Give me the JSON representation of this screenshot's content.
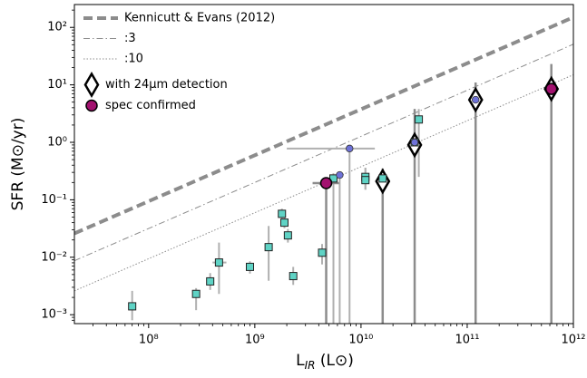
{
  "chart_data": {
    "type": "scatter",
    "xlabel": [
      "L",
      "IR",
      " (L⊙)"
    ],
    "ylabel": "SFR (M⊙/yr)",
    "log_x": true,
    "log_y": true,
    "xlim": [
      20000000,
      1000000000000
    ],
    "ylim": [
      0.0007,
      250
    ],
    "xticks": [
      {
        "value": 100000000,
        "label": "10⁸"
      },
      {
        "value": 1000000000,
        "label": "10⁹"
      },
      {
        "value": 10000000000,
        "label": "10¹⁰"
      },
      {
        "value": 100000000000,
        "label": "10¹¹"
      },
      {
        "value": 1000000000000,
        "label": "10¹²"
      }
    ],
    "yticks": [
      {
        "value": 0.001,
        "label": "10⁻³"
      },
      {
        "value": 0.01,
        "label": "10⁻²"
      },
      {
        "value": 0.1,
        "label": "10⁻¹"
      },
      {
        "value": 1,
        "label": "10⁰"
      },
      {
        "value": 10,
        "label": "10¹"
      },
      {
        "value": 100,
        "label": "10²"
      }
    ],
    "legend": "upper left",
    "series": [
      {
        "name": "Kennicutt & Evans (2012)",
        "kind": "line",
        "dash": "dashed",
        "color": "#8c8c8c",
        "x": [
          20000000,
          1000000000000
        ],
        "values": [
          0.026,
          150
        ]
      },
      {
        "name": ":3",
        "kind": "line",
        "dash": "dashdot",
        "color": "#8c8c8c",
        "x": [
          20000000,
          1000000000000
        ],
        "values": [
          0.0087,
          51
        ]
      },
      {
        "name": ":10",
        "kind": "line",
        "dash": "dotted",
        "color": "#8c8c8c",
        "x": [
          20000000,
          1000000000000
        ],
        "values": [
          0.0026,
          15
        ]
      },
      {
        "kind": "points",
        "marker": "square",
        "color": "#5fd3c5",
        "err_color": "#b0b0b0",
        "x": [
          70000000,
          280000000,
          380000000,
          460000000,
          900000000,
          1350000000,
          1800000000,
          1900000000,
          2050000000,
          2300000000,
          4300000000,
          5500000000,
          11000000000,
          11000000000,
          16000000000,
          32000000000,
          35000000000
        ],
        "values": [
          0.0014,
          0.0023,
          0.0038,
          0.0081,
          0.0068,
          0.015,
          0.057,
          0.04,
          0.024,
          0.0047,
          0.012,
          0.235,
          0.25,
          0.22,
          0.235,
          1.0,
          2.5
        ],
        "err_low": [
          0.0008,
          0.0012,
          0.0027,
          0.0023,
          0.0052,
          0.0039,
          0.046,
          0.032,
          0.018,
          0.0033,
          0.0075,
          0.0007,
          0.15,
          0.15,
          0.0007,
          0.0007,
          0.25
        ],
        "err_high": [
          0.0026,
          0.0029,
          0.0053,
          0.018,
          0.0085,
          0.035,
          0.07,
          0.05,
          0.031,
          0.0068,
          0.017,
          0.29,
          0.36,
          0.36,
          0.35,
          3.8,
          3.8
        ],
        "xerr_low": [
          null,
          null,
          null,
          400000000,
          null,
          null,
          null,
          null,
          null,
          null,
          null,
          null,
          null,
          null,
          null,
          null,
          null
        ],
        "xerr_high": [
          null,
          null,
          null,
          540000000,
          null,
          null,
          null,
          null,
          null,
          null,
          null,
          null,
          null,
          null,
          null,
          null,
          null
        ]
      },
      {
        "kind": "points",
        "marker": "circle",
        "color": "#6e72d8",
        "err_color": "#b0b0b0",
        "x": [
          7800000000,
          6300000000,
          32000000000,
          120000000000
        ],
        "values": [
          0.78,
          0.27,
          1.0,
          5.5
        ],
        "err_low": [
          0.0007,
          0.0007,
          null,
          null
        ],
        "err_high": [
          0.78,
          0.27,
          null,
          null
        ],
        "xerr_low": [
          2000000000,
          null,
          null,
          null
        ],
        "xerr_high": [
          13500000000,
          null,
          null,
          null
        ]
      },
      {
        "name": "with 24μm detection",
        "kind": "points",
        "marker": "diamond",
        "color": "#ffffff",
        "edge": "#000000",
        "err_color": "#8c8c8c",
        "x": [
          16000000000,
          32000000000,
          120000000000,
          620000000000
        ],
        "values": [
          0.21,
          0.9,
          5.5,
          8.5
        ],
        "err_low": [
          0.0007,
          0.0007,
          0.0007,
          0.0007
        ],
        "err_high": [
          0.35,
          3.8,
          11,
          23
        ],
        "xerr_low": [
          null,
          null,
          null,
          null
        ],
        "xerr_high": [
          null,
          null,
          null,
          null
        ]
      },
      {
        "name": "spec confirmed",
        "kind": "points",
        "marker": "bigcircle",
        "color": "#a2116f",
        "edge": "#000000",
        "err_color": "#8c8c8c",
        "x": [
          4700000000,
          620000000000
        ],
        "values": [
          0.195,
          8.5
        ],
        "err_low": [
          0.0007,
          null
        ],
        "err_high": [
          0.195,
          null
        ],
        "xerr_low": [
          3500000000,
          null
        ],
        "xerr_high": [
          6200000000,
          null
        ]
      }
    ]
  }
}
